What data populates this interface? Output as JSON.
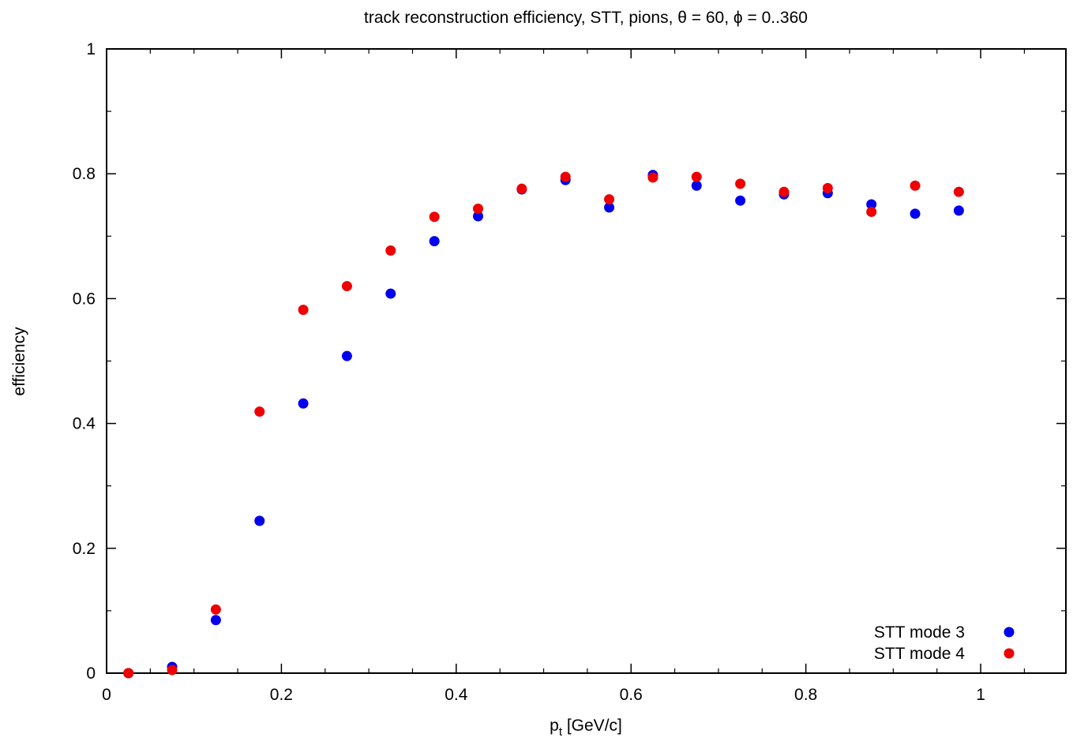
{
  "chart_data": {
    "type": "scatter",
    "title": "track reconstruction efficiency, STT, pions, θ = 60, ϕ = 0..360",
    "xlabel": {
      "main": "p",
      "sub": "t",
      "rest": " [GeV/c]"
    },
    "ylabel": "efficiency",
    "xlim": [
      0,
      1.0975
    ],
    "ylim": [
      0,
      1
    ],
    "x_ticks": [
      {
        "value": 0,
        "label": "0"
      },
      {
        "value": 0.2,
        "label": "0.2"
      },
      {
        "value": 0.4,
        "label": "0.4"
      },
      {
        "value": 0.6,
        "label": "0.6"
      },
      {
        "value": 0.8,
        "label": "0.8"
      },
      {
        "value": 1,
        "label": "1"
      }
    ],
    "y_ticks": [
      {
        "value": 0,
        "label": "0"
      },
      {
        "value": 0.2,
        "label": "0.2"
      },
      {
        "value": 0.4,
        "label": "0.4"
      },
      {
        "value": 0.6,
        "label": "0.6"
      },
      {
        "value": 0.8,
        "label": "0.8"
      },
      {
        "value": 1,
        "label": "1"
      }
    ],
    "grid": false,
    "legend_position": "bottom-right",
    "x": [
      0.025,
      0.075,
      0.125,
      0.175,
      0.225,
      0.275,
      0.325,
      0.375,
      0.425,
      0.475,
      0.525,
      0.575,
      0.625,
      0.675,
      0.725,
      0.775,
      0.825,
      0.875,
      0.925,
      0.975
    ],
    "series": [
      {
        "name": "STT mode 3",
        "color": "#0000ee",
        "values": [
          0.0,
          0.01,
          0.085,
          0.244,
          0.432,
          0.508,
          0.608,
          0.692,
          0.732,
          0.775,
          0.79,
          0.746,
          0.798,
          0.781,
          0.757,
          0.767,
          0.769,
          0.751,
          0.736,
          0.741
        ]
      },
      {
        "name": "STT mode 4",
        "color": "#ee0000",
        "values": [
          0.0,
          0.005,
          0.102,
          0.419,
          0.582,
          0.62,
          0.677,
          0.731,
          0.744,
          0.776,
          0.795,
          0.759,
          0.794,
          0.795,
          0.784,
          0.771,
          0.777,
          0.739,
          0.781,
          0.771
        ]
      }
    ]
  }
}
